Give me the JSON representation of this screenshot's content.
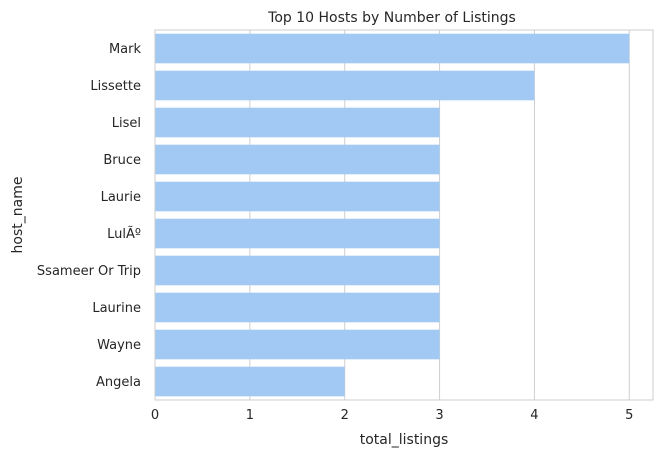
{
  "chart_data": {
    "type": "bar",
    "orientation": "horizontal",
    "title": "Top 10 Hosts by Number of Listings",
    "xlabel": "total_listings",
    "ylabel": "host_name",
    "categories": [
      "Mark",
      "Lissette",
      "Lisel",
      "Bruce",
      "Laurie",
      "LulÃº",
      "Ssameer Or Trip",
      "Laurine",
      "Wayne",
      "Angela"
    ],
    "values": [
      5,
      4,
      3,
      3,
      3,
      3,
      3,
      3,
      3,
      2
    ],
    "xlim": [
      0,
      5.25
    ],
    "xticks": [
      0,
      1,
      2,
      3,
      4,
      5
    ],
    "grid": true,
    "bar_color": "#a1c9f4"
  }
}
